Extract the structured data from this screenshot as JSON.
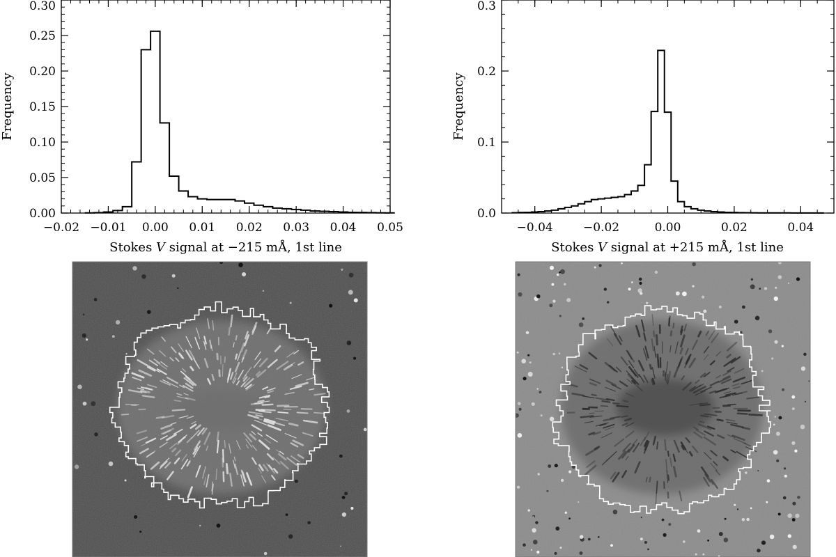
{
  "chart_data": [
    {
      "type": "bar",
      "style": "step-histogram",
      "title": "",
      "xlabel_parts": [
        "Stokes ",
        "V",
        " signal at −215 mÅ, 1st line"
      ],
      "ylabel": "Frequency",
      "xlim": [
        -0.02,
        0.05
      ],
      "ylim": [
        0.0,
        0.3
      ],
      "xticks": [
        -0.02,
        -0.01,
        0.0,
        0.01,
        0.02,
        0.03,
        0.04,
        0.05
      ],
      "xtick_labels": [
        "−0.02",
        "−0.01",
        "0.00",
        "0.01",
        "0.02",
        "0.03",
        "0.04",
        "0.05"
      ],
      "yticks": [
        0.0,
        0.05,
        0.1,
        0.15,
        0.2,
        0.25,
        0.3
      ],
      "ytick_labels": [
        "0.00",
        "0.05",
        "0.10",
        "0.15",
        "0.20",
        "0.25",
        "0.30"
      ],
      "bin_width": 0.002,
      "x": [
        -0.014,
        -0.012,
        -0.01,
        -0.008,
        -0.006,
        -0.004,
        -0.002,
        0.0,
        0.002,
        0.004,
        0.006,
        0.008,
        0.01,
        0.012,
        0.014,
        0.016,
        0.018,
        0.02,
        0.022,
        0.024,
        0.026,
        0.028,
        0.03,
        0.032,
        0.034,
        0.036,
        0.038,
        0.04,
        0.042,
        0.044,
        0.046,
        0.048,
        0.05
      ],
      "values": [
        0.0003,
        0.0006,
        0.0015,
        0.0035,
        0.009,
        0.072,
        0.23,
        0.256,
        0.127,
        0.052,
        0.031,
        0.023,
        0.02,
        0.019,
        0.019,
        0.019,
        0.017,
        0.014,
        0.011,
        0.009,
        0.007,
        0.006,
        0.005,
        0.004,
        0.003,
        0.0025,
        0.002,
        0.0015,
        0.001,
        0.0008,
        0.0006,
        0.0004,
        0.0003
      ]
    },
    {
      "type": "bar",
      "style": "step-histogram",
      "title": "",
      "xlabel_parts": [
        "Stokes ",
        "V",
        " signal at +215 mÅ, 1st line"
      ],
      "ylabel": "Frequency",
      "xlim": [
        -0.05,
        0.05
      ],
      "ylim": [
        0.0,
        0.3
      ],
      "xticks": [
        -0.04,
        -0.02,
        0.0,
        0.02,
        0.04
      ],
      "xtick_labels": [
        "−0.04",
        "−0.02",
        "0.00",
        "0.02",
        "0.04"
      ],
      "yticks": [
        0.0,
        0.1,
        0.2,
        0.3
      ],
      "ytick_labels": [
        "0.0",
        "0.1",
        "0.2",
        "0.3"
      ],
      "bin_width": 0.002,
      "x": [
        -0.046,
        -0.044,
        -0.042,
        -0.04,
        -0.038,
        -0.036,
        -0.034,
        -0.032,
        -0.03,
        -0.028,
        -0.026,
        -0.024,
        -0.022,
        -0.02,
        -0.018,
        -0.016,
        -0.014,
        -0.012,
        -0.01,
        -0.008,
        -0.006,
        -0.004,
        -0.002,
        0.0,
        0.002,
        0.004,
        0.006,
        0.008,
        0.01,
        0.012,
        0.014,
        0.016,
        0.018,
        0.02,
        0.022,
        0.024,
        0.026,
        0.028,
        0.03,
        0.032,
        0.034,
        0.036,
        0.038,
        0.04,
        0.042,
        0.044,
        0.046
      ],
      "values": [
        0.0005,
        0.0008,
        0.001,
        0.0015,
        0.002,
        0.003,
        0.004,
        0.006,
        0.008,
        0.01,
        0.013,
        0.016,
        0.019,
        0.02,
        0.021,
        0.022,
        0.023,
        0.026,
        0.031,
        0.039,
        0.068,
        0.143,
        0.229,
        0.142,
        0.045,
        0.016,
        0.009,
        0.006,
        0.004,
        0.003,
        0.002,
        0.0015,
        0.001,
        0.0008,
        0.0006,
        0.0005,
        0.0004,
        0.0003,
        0.0003,
        0.0002,
        0.0002,
        0.0002,
        0.0001,
        0.0001,
        0.0001,
        0.0001,
        0.0001
      ]
    }
  ],
  "images": [
    {
      "label": "Stokes V map at −215 mÅ with penumbra contour",
      "background": "#4d4d4d",
      "feature_color": "#d8d8d8",
      "contour_color": "#ffffff"
    },
    {
      "label": "Stokes V map at +215 mÅ with penumbra contour",
      "background": "#8c8c8c",
      "feature_color": "#3a3a3a",
      "contour_color": "#ffffff"
    }
  ]
}
